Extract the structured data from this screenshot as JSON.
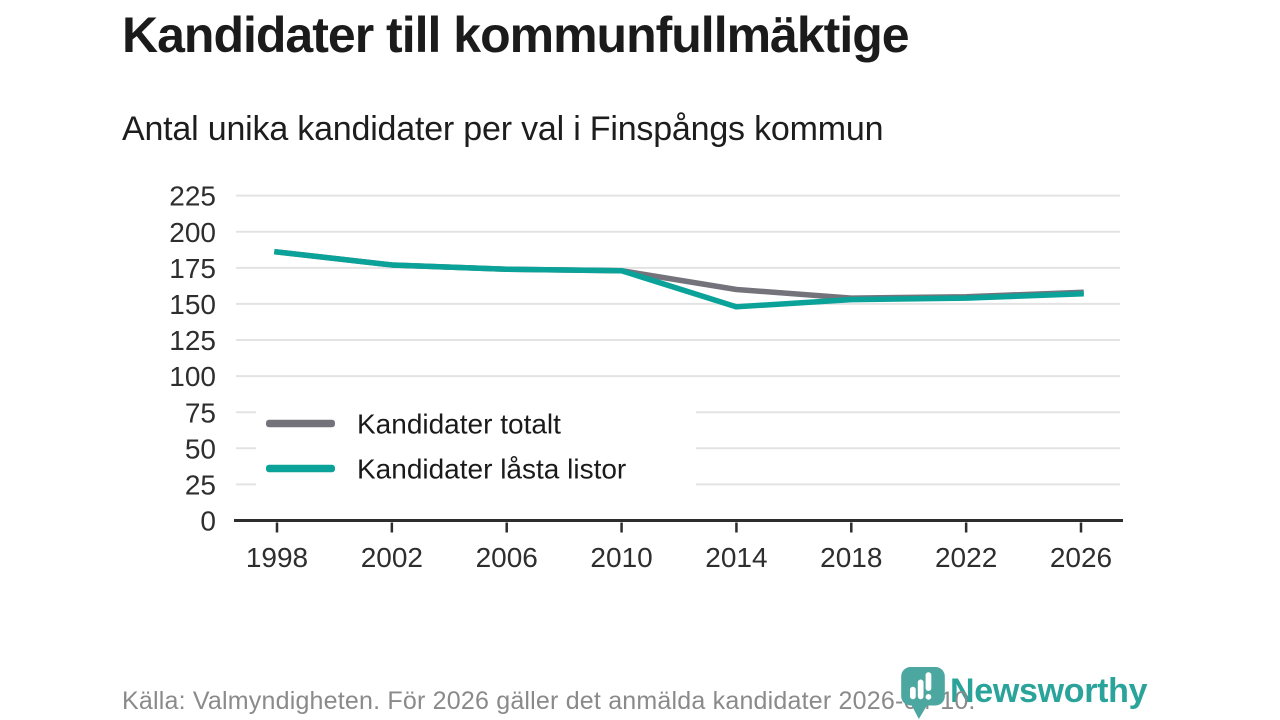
{
  "brand": {
    "name": "Newsworthy",
    "logo_color": "#4ba7a0",
    "text_color": "#2aa39b"
  },
  "style_colors": {
    "grid": "#e3e3e3",
    "axis": "#2d2d2d",
    "tick_label": "#2e2e2e",
    "legend_label": "#1a1a1a",
    "legend_background": "#ffffff"
  },
  "chart_data": {
    "type": "line",
    "title": "Kandidater till kommunfullmäktige",
    "subtitle": "Antal unika kandidater per val i Finspångs kommun",
    "source": "Källa: Valmyndigheten. För 2026 gäller det anmälda kandidater 2026-04-10.",
    "x": [
      1998,
      2002,
      2006,
      2010,
      2014,
      2018,
      2022,
      2026
    ],
    "series": [
      {
        "name": "Kandidater totalt",
        "color": "#74737b",
        "values": [
          186,
          177,
          174,
          173,
          160,
          154,
          155,
          158
        ]
      },
      {
        "name": "Kandidater låsta listor",
        "color": "#0ba29a",
        "values": [
          186,
          177,
          174,
          173,
          148,
          153,
          154,
          157
        ]
      }
    ],
    "xticks": [
      1998,
      2002,
      2006,
      2010,
      2014,
      2018,
      2022,
      2026
    ],
    "yticks": [
      0,
      25,
      50,
      75,
      100,
      125,
      150,
      175,
      200,
      225
    ],
    "ylim": [
      0,
      225
    ],
    "grid": true,
    "legend_position": "inside-left-middle"
  }
}
